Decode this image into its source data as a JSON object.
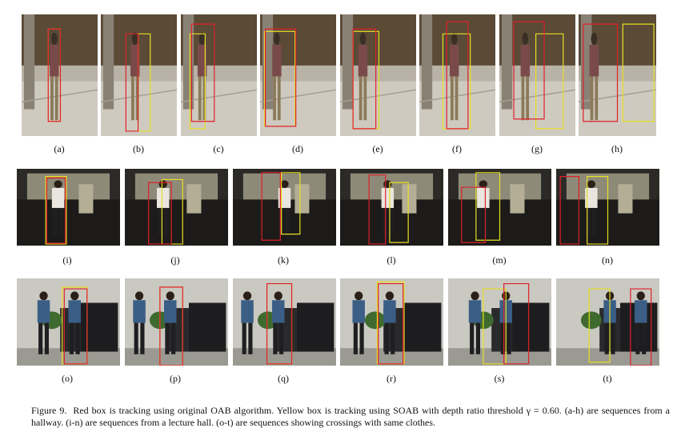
{
  "rows": [
    {
      "scene": "hallway",
      "panels": [
        {
          "label": "(a)"
        },
        {
          "label": "(b)"
        },
        {
          "label": "(c)"
        },
        {
          "label": "(d)"
        },
        {
          "label": "(e)"
        },
        {
          "label": "(f)"
        },
        {
          "label": "(g)"
        },
        {
          "label": "(h)"
        }
      ]
    },
    {
      "scene": "lecture",
      "panels": [
        {
          "label": "(i)"
        },
        {
          "label": "(j)"
        },
        {
          "label": "(k)"
        },
        {
          "label": "(l)"
        },
        {
          "label": "(m)"
        },
        {
          "label": "(n)"
        }
      ]
    },
    {
      "scene": "office",
      "panels": [
        {
          "label": "(o)"
        },
        {
          "label": "(p)"
        },
        {
          "label": "(q)"
        },
        {
          "label": "(r)"
        },
        {
          "label": "(s)"
        },
        {
          "label": "(t)"
        }
      ]
    }
  ],
  "legend_colors": {
    "oab": "#e0202a",
    "soab": "#e8e022"
  },
  "caption": {
    "figure_label": "Figure 9.",
    "text": "Red box is tracking using original OAB algorithm. Yellow box is tracking using SOAB with depth ratio threshold γ = 0.60. (a-h) are sequences from a hallway. (i-n) are sequences from a lecture hall. (o-t) are sequences showing crossings with same clothes."
  }
}
